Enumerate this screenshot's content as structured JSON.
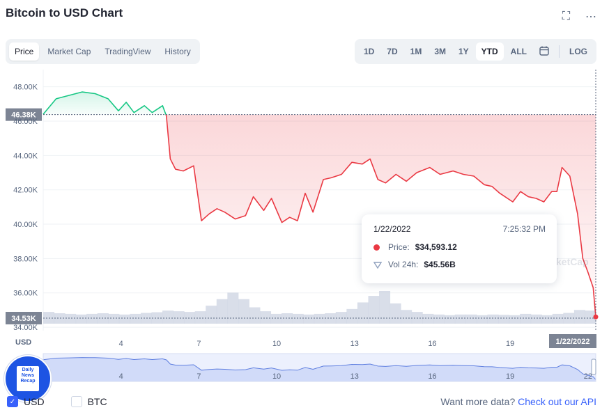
{
  "title": "Bitcoin to USD Chart",
  "top_icons": {
    "fullscreen": "fullscreen-icon",
    "more": "more-icon"
  },
  "tabs": [
    {
      "label": "Price",
      "active": true
    },
    {
      "label": "Market Cap",
      "active": false
    },
    {
      "label": "TradingView",
      "active": false
    },
    {
      "label": "History",
      "active": false
    }
  ],
  "ranges": [
    {
      "label": "1D",
      "active": false
    },
    {
      "label": "7D",
      "active": false
    },
    {
      "label": "1M",
      "active": false
    },
    {
      "label": "3M",
      "active": false
    },
    {
      "label": "1Y",
      "active": false
    },
    {
      "label": "YTD",
      "active": true
    },
    {
      "label": "ALL",
      "active": false
    }
  ],
  "calendar_icon": "calendar-icon",
  "log_label": "LOG",
  "colors": {
    "up": "#16c784",
    "down": "#ea3943",
    "accent": "#3861fb",
    "volume": "#cfd6e4",
    "nav": "#dfe6fb"
  },
  "chart_data": {
    "type": "line",
    "ylabel": "USD",
    "ylim": [
      33800,
      49000
    ],
    "yticks": [
      "48.00K",
      "46.00K",
      "44.00K",
      "42.00K",
      "40.00K",
      "38.00K",
      "36.00K",
      "34.00K"
    ],
    "ytick_values": [
      48000,
      46000,
      44000,
      42000,
      40000,
      38000,
      36000,
      34000
    ],
    "xticks": [
      "4",
      "7",
      "10",
      "13",
      "16",
      "19"
    ],
    "xtick_days": [
      4,
      7,
      10,
      13,
      16,
      19
    ],
    "xlim_days": [
      1,
      22.3
    ],
    "reference_line": {
      "label": "46.38K",
      "value": 46380
    },
    "current_line": {
      "label": "34.53K",
      "value": 34530
    },
    "current_date_label": "1/22/2022",
    "series": [
      {
        "x": [
          1.0,
          1.5,
          2.0,
          2.5,
          3.0,
          3.5,
          3.9,
          4.2,
          4.5,
          4.9,
          5.2,
          5.6,
          5.75,
          5.9,
          6.1,
          6.4,
          6.8,
          7.1,
          7.4,
          7.7,
          8.0,
          8.4,
          8.8,
          9.1,
          9.5,
          9.8,
          10.2,
          10.5,
          10.8,
          11.1,
          11.4,
          11.8,
          12.1,
          12.5,
          12.9,
          13.3,
          13.6,
          13.9,
          14.2,
          14.6,
          15.0,
          15.4,
          15.9,
          16.3,
          16.8,
          17.2,
          17.6,
          18.0,
          18.3,
          18.6,
          19.1,
          19.4,
          19.7,
          20.0,
          20.3,
          20.6,
          20.8,
          21.0,
          21.3,
          21.6,
          21.8,
          22.0,
          22.2,
          22.3
        ],
        "y": [
          46400,
          47300,
          47500,
          47700,
          47600,
          47300,
          46600,
          47100,
          46500,
          46900,
          46500,
          46900,
          46300,
          43800,
          43200,
          43100,
          43400,
          40200,
          40600,
          40900,
          40700,
          40300,
          40500,
          41600,
          40800,
          41500,
          40100,
          40400,
          40200,
          41800,
          40700,
          42600,
          42700,
          42900,
          43600,
          43500,
          43800,
          42600,
          42400,
          42900,
          42500,
          43000,
          43300,
          42900,
          43100,
          42900,
          42800,
          42300,
          42200,
          41800,
          41300,
          41900,
          41600,
          41500,
          41300,
          41900,
          41900,
          43300,
          42800,
          40600,
          38000,
          37200,
          36300,
          34600
        ]
      }
    ],
    "volume_relative": [
      0.36,
      0.32,
      0.3,
      0.28,
      0.3,
      0.32,
      0.3,
      0.28,
      0.3,
      0.33,
      0.35,
      0.4,
      0.38,
      0.36,
      0.38,
      0.55,
      0.75,
      0.95,
      0.75,
      0.5,
      0.38,
      0.3,
      0.32,
      0.3,
      0.28,
      0.3,
      0.32,
      0.36,
      0.45,
      0.65,
      0.85,
      1.0,
      0.62,
      0.42,
      0.36,
      0.3,
      0.28,
      0.26,
      0.28,
      0.28,
      0.26,
      0.28,
      0.27,
      0.26,
      0.3,
      0.28,
      0.26,
      0.3,
      0.33,
      0.42,
      0.4
    ]
  },
  "tooltip": {
    "date": "1/22/2022",
    "time": "7:25:32 PM",
    "price_label": "Price:",
    "price_value": "$34,593.12",
    "vol_label": "Vol 24h:",
    "vol_value": "$45.56B"
  },
  "watermark": "ketCap",
  "navigator_xticks": [
    "4",
    "7",
    "10",
    "13",
    "16",
    "19",
    "22"
  ],
  "footer": {
    "usd_label": "USD",
    "usd_checked": true,
    "btc_label": "BTC",
    "btc_checked": false,
    "more_text": "Want more data?",
    "api_link": "Check out our API"
  },
  "logo_text": "Daily News Recap"
}
